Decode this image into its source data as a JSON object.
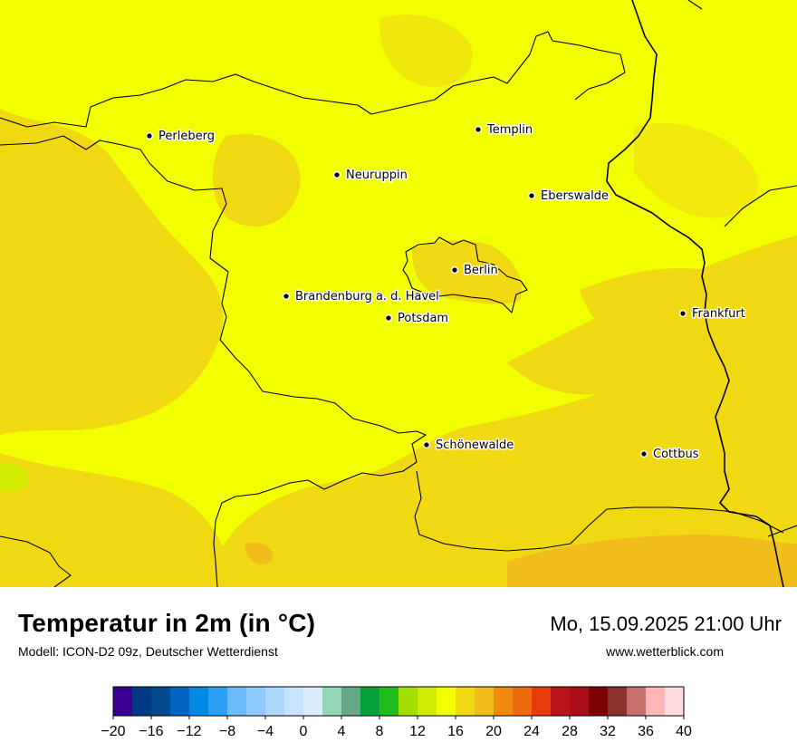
{
  "map": {
    "background_color": "#f1ff00",
    "warm_color": "#f0d812",
    "warmer_color": "#f0bd1a",
    "border_color": "#000000",
    "cities": [
      {
        "name": "Perleberg"
      },
      {
        "name": "Templin"
      },
      {
        "name": "Neuruppin"
      },
      {
        "name": "Eberswalde"
      },
      {
        "name": "Berlin"
      },
      {
        "name": "Brandenburg a. d. Havel"
      },
      {
        "name": "Potsdam"
      },
      {
        "name": "Frankfurt"
      },
      {
        "name": "Schönewalde"
      },
      {
        "name": "Cottbus"
      }
    ]
  },
  "footer": {
    "title": "Temperatur in 2m (in °C)",
    "subtitle": "Modell: ICON-D2 09z, Deutscher Wetterdienst",
    "datetime": "Mo, 15.09.2025 21:00 Uhr",
    "website": "www.wetterblick.com"
  },
  "colorbar": {
    "min": -20,
    "max": 40,
    "step": 2,
    "tick_labels": [
      "−20",
      "−16",
      "−12",
      "−8",
      "−4",
      "0",
      "4",
      "8",
      "12",
      "16",
      "20",
      "24",
      "28",
      "32",
      "36",
      "40"
    ],
    "colors": [
      "#3a0094",
      "#003a86",
      "#00498f",
      "#0064c0",
      "#0088e6",
      "#2aa1f2",
      "#6cbafc",
      "#8dc9fd",
      "#acd8fe",
      "#c7e3fe",
      "#daecfe",
      "#93d8b6",
      "#63aa84",
      "#06a03a",
      "#21bb1b",
      "#a3df00",
      "#d2ec00",
      "#f1ff00",
      "#f0d812",
      "#f0bd1a",
      "#f08a0f",
      "#f06a0e",
      "#e93c0d",
      "#b91419",
      "#a80f18",
      "#7d0206",
      "#8a312e",
      "#c6706e",
      "#ffb5b5",
      "#ffdcdc"
    ]
  }
}
